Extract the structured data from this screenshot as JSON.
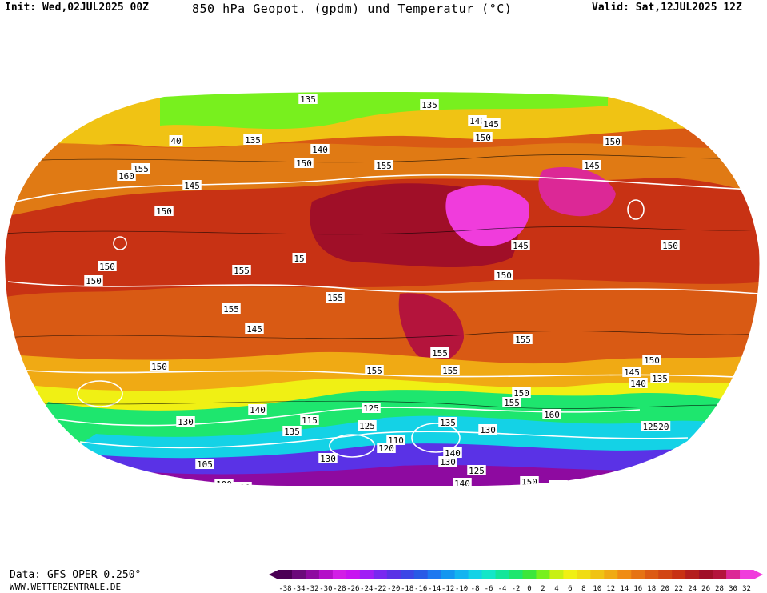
{
  "header": {
    "init": "Init: Wed,02JUL2025 00Z",
    "title": "850 hPa Geopot. (gpdm) und Temperatur (°C)",
    "valid": "Valid: Sat,12JUL2025 12Z"
  },
  "footer": {
    "data_source": "Data: GFS OPER 0.250°",
    "website": "WWW.WETTERZENTRALE.DE"
  },
  "legend": {
    "ticks": [
      "-38",
      "-34",
      "-32",
      "-30",
      "-28",
      "-26",
      "-24",
      "-22",
      "-20",
      "-18",
      "-16",
      "-14",
      "-12",
      "-10",
      "-8",
      "-6",
      "-4",
      "-2",
      "0",
      "2",
      "4",
      "6",
      "8",
      "10",
      "12",
      "14",
      "16",
      "18",
      "20",
      "22",
      "24",
      "26",
      "28",
      "30",
      "32"
    ],
    "colors": [
      "#4b0055",
      "#6b0a7a",
      "#8e0aa0",
      "#b40fc8",
      "#d21ee6",
      "#c814f0",
      "#a01ef5",
      "#7828f0",
      "#5a32e6",
      "#3c46e6",
      "#285ae6",
      "#1e78f0",
      "#1496f0",
      "#14b4f0",
      "#14d2e6",
      "#14e6c8",
      "#14e69a",
      "#1ee66e",
      "#3ce63c",
      "#78f01e",
      "#c8f014",
      "#f0f014",
      "#f0dc14",
      "#f0c314",
      "#f0aa14",
      "#f08c14",
      "#e67314",
      "#dc5a14",
      "#d24614",
      "#c83214",
      "#b41e1e",
      "#a00f28",
      "#b4143c",
      "#dc2896",
      "#f03cdc"
    ]
  },
  "map": {
    "labels": [
      "135",
      "135",
      "140",
      "145",
      "135",
      "150",
      "40",
      "155",
      "160",
      "145",
      "155",
      "150",
      "150",
      "140",
      "150",
      "145",
      "155",
      "155",
      "145",
      "150",
      "150",
      "150",
      "15",
      "155",
      "155",
      "155",
      "155",
      "155",
      "150",
      "150",
      "145",
      "135",
      "150",
      "145",
      "140",
      "140",
      "155",
      "150",
      "160",
      "12520",
      "130",
      "125",
      "125",
      "110",
      "120",
      "115",
      "135",
      "130",
      "105",
      "100",
      "120",
      "140",
      "130",
      "130",
      "125",
      "140",
      "150",
      "145",
      "135"
    ]
  }
}
